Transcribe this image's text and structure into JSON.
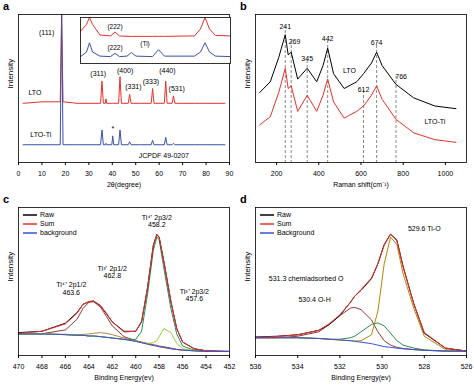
{
  "chart_data": [
    {
      "type": "line",
      "title": "a",
      "x_label": "2θ(degree)",
      "y_label": "Intensity",
      "xlim": [
        0,
        90
      ],
      "xticks": [
        0,
        10,
        20,
        30,
        40,
        50,
        60,
        70,
        80,
        90
      ],
      "ylim": [
        0,
        100
      ],
      "tick_labels": "x",
      "x": [
        2,
        10,
        17.8,
        18.4,
        19.0,
        25,
        35.0,
        35.6,
        36.2,
        37.0,
        37.3,
        37.6,
        39.8,
        40.2,
        40.6,
        42.7,
        43.3,
        43.9,
        46.8,
        47.4,
        48.0,
        52,
        56.6,
        57.2,
        57.8,
        62.2,
        62.8,
        63.4,
        65.5,
        66.1,
        66.7,
        75,
        88
      ],
      "series": [
        {
          "name": "LTO",
          "color": "#e8302a",
          "label_x": 7,
          "label_y": 47,
          "values": [
            40,
            41,
            41,
            100,
            41,
            40,
            40,
            55,
            40,
            40,
            43,
            40,
            40,
            40,
            40,
            40,
            58,
            40,
            40,
            46,
            40,
            40,
            40,
            50,
            40,
            40,
            55,
            40,
            40,
            45,
            40,
            40,
            40
          ]
        },
        {
          "name": "LTO-Ti",
          "color": "#3a52a8",
          "label_x": 9.5,
          "label_y": 19,
          "values": [
            12,
            12,
            12,
            100,
            12,
            12,
            12,
            22,
            12,
            12,
            13,
            12,
            12,
            18,
            12,
            12,
            22,
            12,
            12,
            14,
            12,
            12,
            12,
            15,
            12,
            12,
            17,
            12,
            12,
            13,
            12,
            12,
            12
          ]
        }
      ],
      "annotations": [
        {
          "text": "(111)",
          "x": 12,
          "y": 88
        },
        {
          "text": "(311)",
          "x": 34,
          "y": 60
        },
        {
          "text": "(400)",
          "x": 45.5,
          "y": 62
        },
        {
          "text": "(331)",
          "x": 49,
          "y": 51
        },
        {
          "text": "(333)",
          "x": 56.5,
          "y": 55
        },
        {
          "text": "(440)",
          "x": 63.5,
          "y": 62
        },
        {
          "text": "(531)",
          "x": 67.5,
          "y": 50
        },
        {
          "text": "*",
          "x": 40.2,
          "y": 23
        },
        {
          "text": "JCPDF 49-0207",
          "x": 62,
          "y": 5
        }
      ],
      "inset": {
        "type": "line",
        "xlim": [
          35,
          45
        ],
        "ylim": [
          0,
          100
        ],
        "tick_labels": false,
        "x": [
          35,
          35.4,
          35.6,
          35.8,
          36.3,
          37.0,
          37.3,
          37.6,
          38.1,
          38.4,
          38.7,
          39.8,
          40.2,
          40.6,
          42.6,
          43.0,
          43.3,
          43.6,
          44,
          45
        ],
        "series": [
          {
            "color": "#e8302a",
            "values": [
              70,
              85,
              100,
              85,
              62,
              60,
              68,
              60,
              59,
              59,
              59,
              59,
              59,
              59,
              60,
              75,
              100,
              75,
              61,
              60
            ]
          },
          {
            "color": "#3a52a8",
            "values": [
              15,
              25,
              45,
              25,
              16,
              15,
              22,
              15,
              16,
              24,
              16,
              15,
              30,
              16,
              16,
              25,
              45,
              25,
              16,
              15
            ]
          }
        ],
        "annotations": [
          {
            "text": "(222)",
            "x": 37.3,
            "y": 80
          },
          {
            "text": "(222)",
            "x": 37.3,
            "y": 34
          },
          {
            "text": "(Ti)",
            "x": 39.3,
            "y": 44
          }
        ]
      }
    },
    {
      "type": "line",
      "title": "b",
      "x_label": "Raman shift(cm⁻¹)",
      "y_label": "Intensity",
      "xlim": [
        100,
        1100
      ],
      "xticks": [
        200,
        400,
        600,
        800,
        1000
      ],
      "ylim": [
        0,
        110
      ],
      "tick_labels": "x",
      "x": [
        120,
        170,
        210,
        241,
        255,
        269,
        300,
        345,
        390,
        420,
        442,
        470,
        520,
        580,
        612,
        650,
        674,
        700,
        766,
        850,
        950,
        1050
      ],
      "series": [
        {
          "name": "LTO",
          "color": "#000000",
          "label_x": 545,
          "label_y": 68,
          "values": [
            52,
            60,
            78,
            95,
            80,
            82,
            62,
            70,
            60,
            72,
            85,
            66,
            55,
            60,
            66,
            74,
            82,
            72,
            58,
            48,
            42,
            40
          ]
        },
        {
          "name": "LTO-Ti",
          "color": "#e8302a",
          "label_x": 950,
          "label_y": 30,
          "values": [
            28,
            34,
            52,
            70,
            55,
            57,
            38,
            50,
            38,
            50,
            62,
            45,
            33,
            38,
            42,
            50,
            57,
            47,
            32,
            22,
            17,
            15
          ]
        }
      ],
      "annotations": [
        {
          "text": "241",
          "x": 241,
          "y": 101,
          "peak": 241
        },
        {
          "text": "269",
          "x": 285,
          "y": 90,
          "peak": 269
        },
        {
          "text": "345",
          "x": 345,
          "y": 77,
          "peak": 345
        },
        {
          "text": "442",
          "x": 442,
          "y": 92,
          "peak": 442
        },
        {
          "text": "612",
          "x": 612,
          "y": 54,
          "peak": 612
        },
        {
          "text": "674",
          "x": 674,
          "y": 89,
          "peak": 674
        },
        {
          "text": "766",
          "x": 790,
          "y": 64,
          "peak": 766
        }
      ]
    },
    {
      "type": "line",
      "title": "c",
      "x_label": "Binding Energy(ev)",
      "y_label": "Intensity",
      "xlim": [
        470,
        452
      ],
      "xticks": [
        470,
        468,
        466,
        464,
        462,
        460,
        458,
        456,
        454,
        452
      ],
      "ylim": [
        0,
        110
      ],
      "tick_labels": "x",
      "legend": "top-left",
      "x": [
        470,
        468,
        466,
        465,
        464.5,
        464,
        463.6,
        463,
        462.5,
        462,
        461,
        460,
        459.5,
        459,
        458.5,
        458.2,
        458,
        457.6,
        457,
        456.5,
        456,
        455,
        454,
        452
      ],
      "series": [
        {
          "color": "#8b3a3a",
          "values": [
            16,
            16.2,
            19,
            27,
            35,
            39.5,
            40,
            36,
            29,
            22,
            14,
            11,
            10,
            9,
            8,
            7.5,
            7,
            6.5,
            5.5,
            4.5,
            4,
            3.5,
            3,
            3
          ]
        },
        {
          "color": "#c08040",
          "values": [
            16,
            16,
            15.8,
            15.5,
            15.6,
            16,
            16.5,
            17,
            16.5,
            15.5,
            13,
            10.5,
            9.5,
            8.5,
            7.5,
            7,
            6.5,
            6,
            5,
            4.5,
            4,
            3.5,
            3,
            3
          ]
        },
        {
          "color": "#2e8b57",
          "values": [
            16,
            16,
            15.5,
            15,
            15,
            14.5,
            14.5,
            14,
            13.5,
            13,
            12,
            12,
            18,
            45,
            78,
            88,
            86,
            65,
            35,
            16,
            7,
            4,
            3,
            3
          ]
        },
        {
          "color": "#9acd32",
          "values": [
            16,
            16,
            15.5,
            15,
            15,
            14.5,
            14.5,
            14,
            13.5,
            13,
            12,
            10.5,
            9.6,
            9,
            9.5,
            11,
            14,
            20,
            17,
            9,
            5,
            3.6,
            3,
            3
          ]
        },
        {
          "name": "Raw",
          "color": "#000000",
          "values": [
            17,
            18,
            24,
            32,
            38,
            40,
            40.5,
            37,
            31,
            25,
            18,
            18,
            25,
            50,
            82,
            90,
            88,
            70,
            40,
            20,
            10,
            5,
            3.5,
            3
          ]
        },
        {
          "name": "Sum",
          "color": "#e8302a",
          "values": [
            16.5,
            18,
            23.5,
            31.5,
            38,
            40,
            40.5,
            37,
            31.5,
            25,
            17.5,
            18,
            25.5,
            50,
            81.5,
            90,
            87.5,
            70,
            40.5,
            20,
            10,
            5,
            3.5,
            3
          ]
        },
        {
          "name": "background",
          "color": "#3a52d8",
          "values": [
            16,
            16,
            15.5,
            15,
            15,
            14.5,
            14.5,
            14,
            13.5,
            13,
            12,
            10.5,
            9.5,
            8.5,
            7.5,
            7,
            6.5,
            6,
            5,
            4.5,
            4,
            3.5,
            3,
            3
          ]
        }
      ],
      "annotations": [
        {
          "text": "Ti⁴⁺ 2p1/2\n463.6",
          "x": 465.5,
          "y": 50
        },
        {
          "text": "Ti³⁺ 2p1/2\n462.8",
          "x": 462,
          "y": 62
        },
        {
          "text": "Ti⁴⁺ 2p3/2\n458.2",
          "x": 458.2,
          "y": 100
        },
        {
          "text": "Ti³⁺ 2p3/2\n457.6",
          "x": 455,
          "y": 45
        }
      ]
    },
    {
      "type": "line",
      "title": "d",
      "x_label": "Binding Energy(ev)",
      "y_label": "Intensity",
      "xlim": [
        536,
        526
      ],
      "xticks": [
        536,
        534,
        532,
        530,
        528,
        526
      ],
      "ylim": [
        0,
        100
      ],
      "tick_labels": "x",
      "legend": "top-left",
      "x": [
        536,
        535,
        534,
        533,
        532.5,
        532,
        531.5,
        531.3,
        531,
        530.5,
        530.2,
        529.9,
        529.6,
        529.3,
        529,
        528.5,
        528,
        527,
        526
      ],
      "series": [
        {
          "color": "#8b3a3a",
          "values": [
            12,
            12,
            13,
            16,
            21,
            27,
            32,
            32.5,
            31,
            24,
            16,
            10,
            7,
            5.5,
            4.7,
            4,
            3.5,
            3,
            3
          ]
        },
        {
          "color": "#2e8b57",
          "values": [
            12,
            12,
            12,
            11.5,
            11,
            11,
            12,
            13,
            16,
            21,
            22,
            20,
            15,
            10,
            7,
            5,
            3.8,
            3,
            3
          ]
        },
        {
          "color": "#b8860b",
          "values": [
            12,
            12,
            12,
            11.5,
            11,
            10.5,
            10,
            9.8,
            10,
            14,
            30,
            62,
            80,
            75,
            55,
            32,
            13,
            4,
            3
          ]
        },
        {
          "name": "Raw",
          "color": "#000000",
          "values": [
            12.5,
            13,
            14,
            17,
            21,
            27,
            36,
            40,
            44,
            52,
            62,
            75,
            82,
            78,
            60,
            35,
            15,
            5,
            3
          ]
        },
        {
          "name": "Sum",
          "color": "#e8302a",
          "values": [
            12.3,
            12.8,
            14,
            17,
            21.5,
            27.5,
            36,
            40,
            44.5,
            52.5,
            62,
            74.5,
            82,
            77.5,
            59.5,
            35,
            15.5,
            5,
            3
          ]
        },
        {
          "name": "Background",
          "color": "#3a52d8",
          "values": [
            12,
            12,
            12,
            11.5,
            11,
            10.5,
            10,
            9.5,
            9,
            8,
            7,
            6,
            5.5,
            5,
            4.5,
            4,
            3.5,
            3,
            3
          ]
        }
      ],
      "annotations": [
        {
          "text": "531.3 chemiadsorbed O",
          "x": 533.6,
          "y": 52
        },
        {
          "text": "530.4 O-H",
          "x": 533.2,
          "y": 38
        },
        {
          "text": "529.6 Ti-O",
          "x": 528,
          "y": 86
        }
      ]
    }
  ]
}
